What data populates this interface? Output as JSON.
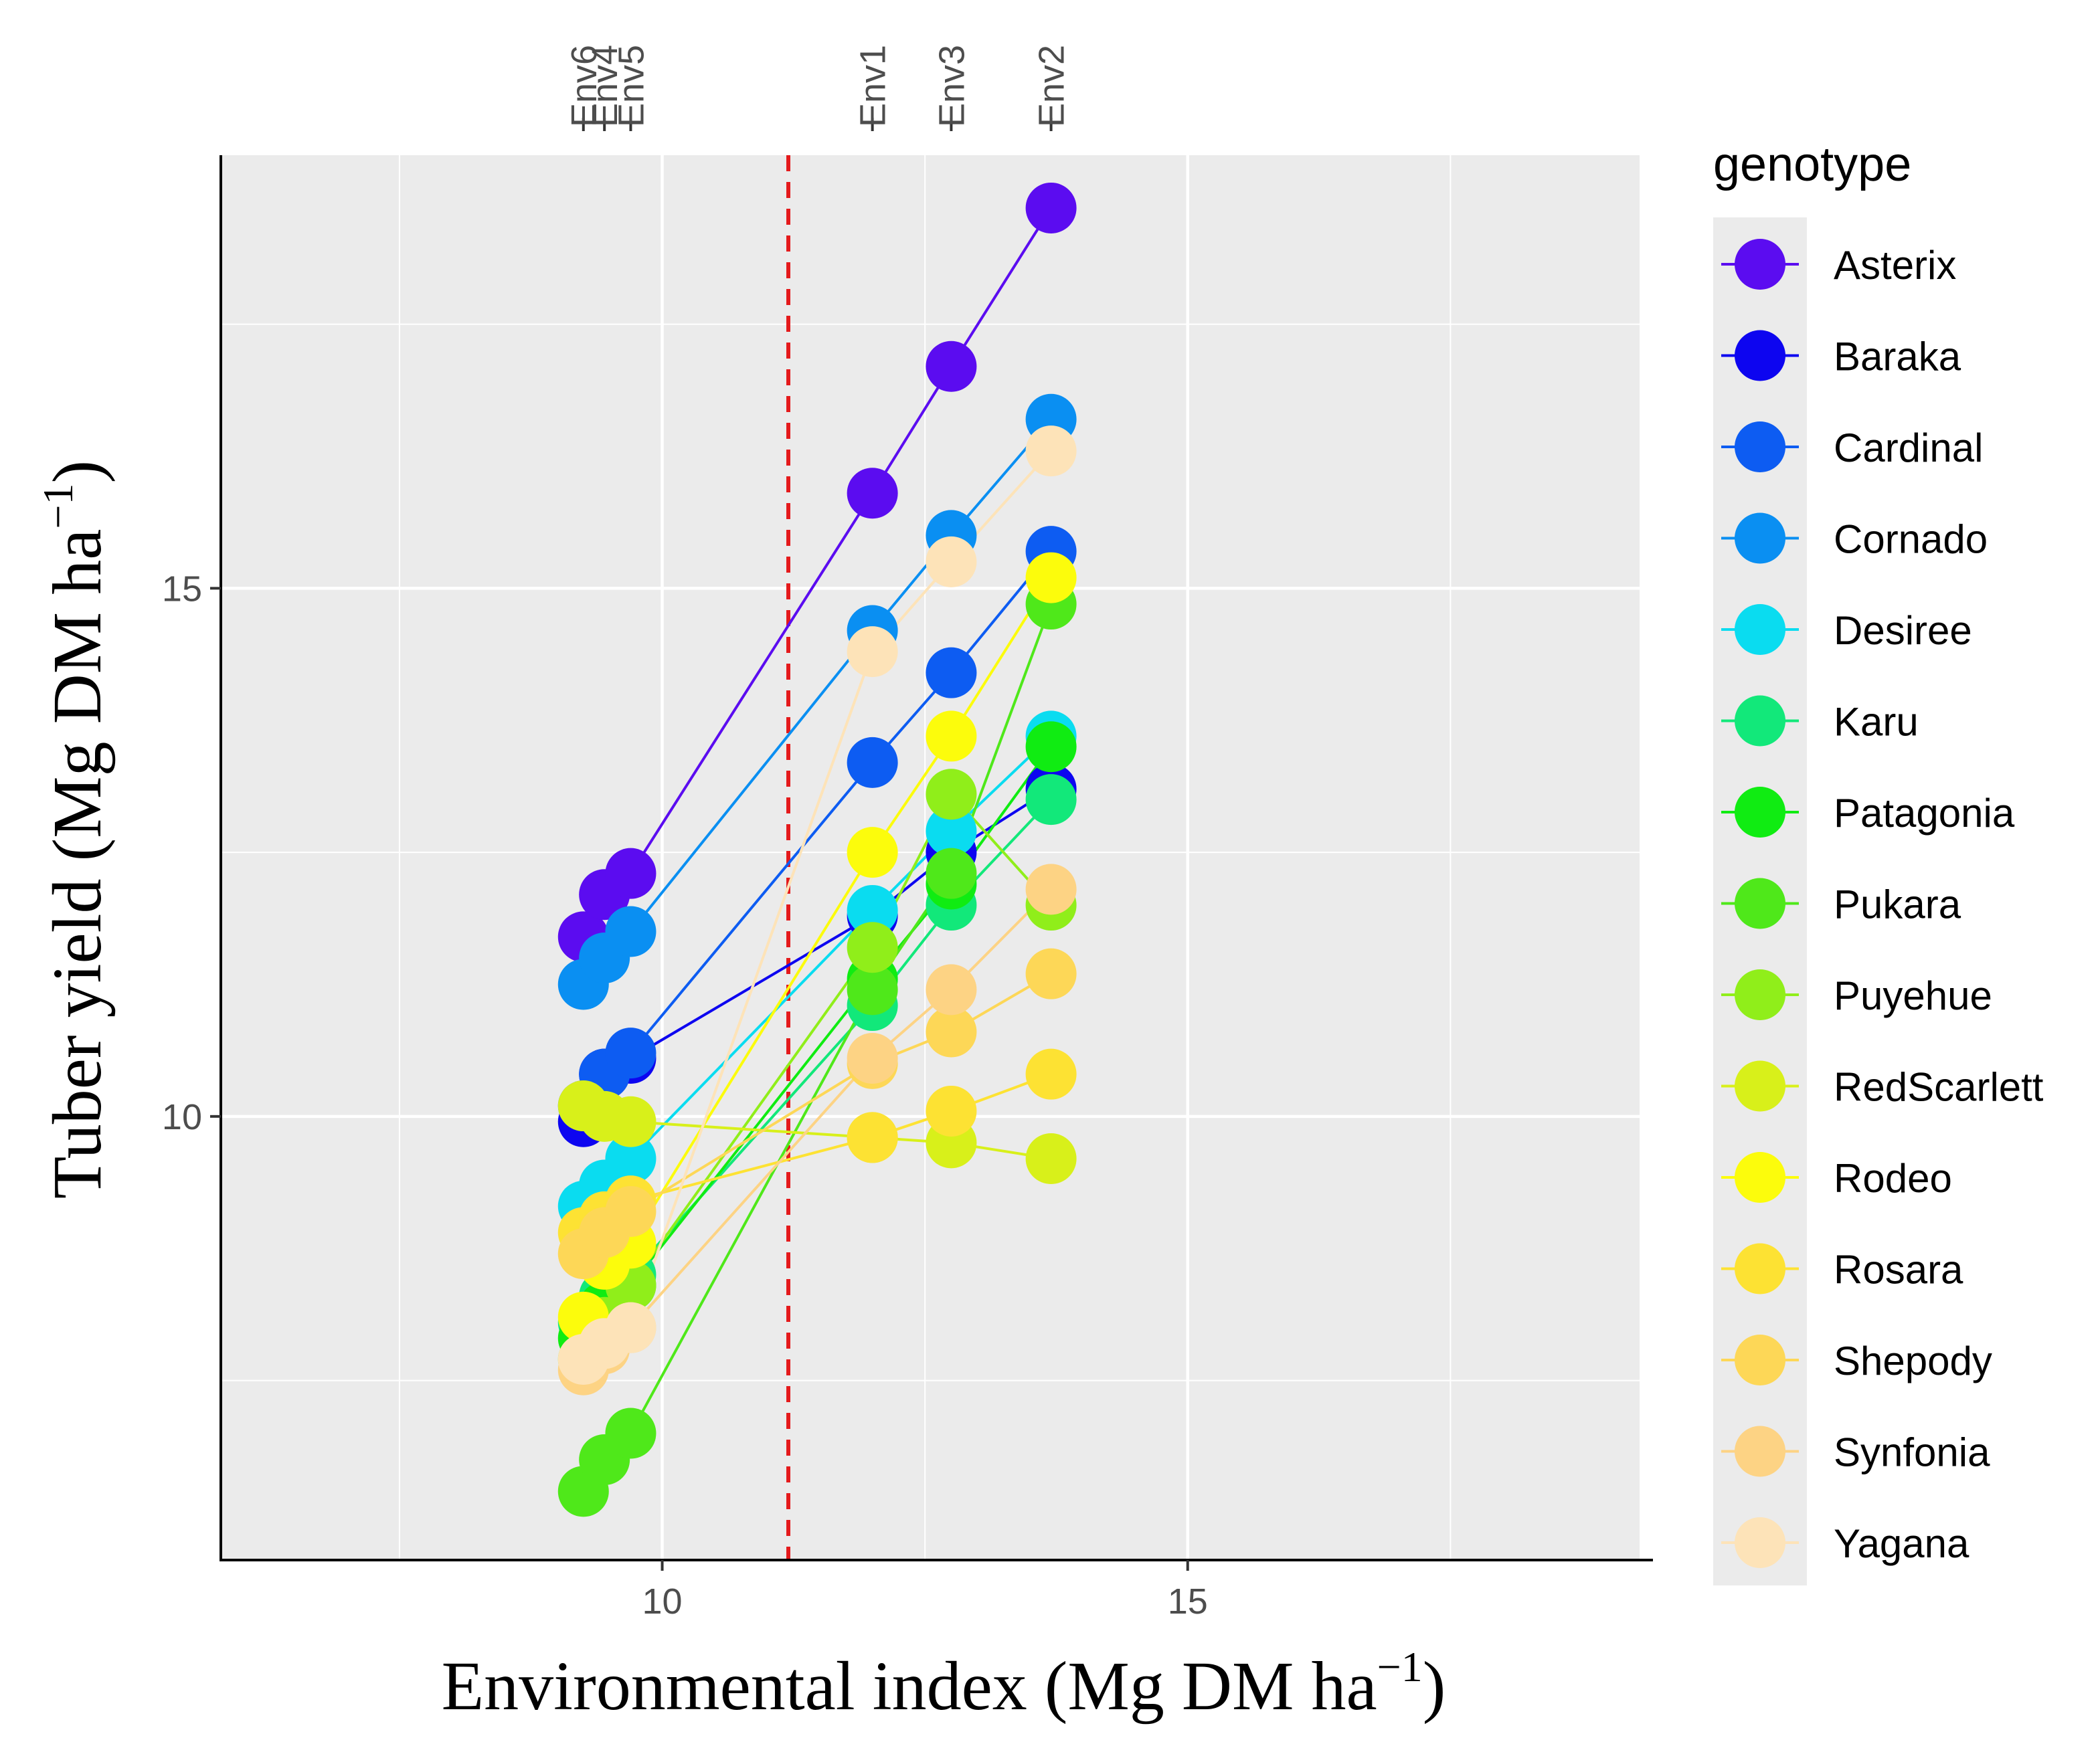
{
  "chart_data": {
    "type": "line",
    "title": "",
    "xlabel": "Environmental index (Mg DM ha",
    "xlabel_sup": "−1",
    "xlabel_end": ")",
    "ylabel": "Tuber yield (Mg DM ha",
    "ylabel_sup": "−1",
    "ylabel_end": ")",
    "xlim": [
      5.8,
      19.3
    ],
    "ylim": [
      5.8,
      19.1
    ],
    "xticks": [
      10,
      15
    ],
    "yticks": [
      10,
      15
    ],
    "x_minor_grid": [
      7.5,
      12.5,
      17.5
    ],
    "y_minor_grid": [
      7.5,
      12.5,
      17.5
    ],
    "grid": true,
    "reference_line": {
      "x": 11.2,
      "color": "#e41a1c",
      "style": "dashed"
    },
    "environments": [
      {
        "name": "Env6",
        "index": 9.25
      },
      {
        "name": "Env4",
        "index": 9.45
      },
      {
        "name": "Env5",
        "index": 9.7
      },
      {
        "name": "Env1",
        "index": 12.0
      },
      {
        "name": "Env3",
        "index": 12.75
      },
      {
        "name": "Env2",
        "index": 13.7
      }
    ],
    "x": [
      9.25,
      9.45,
      9.7,
      12.0,
      12.75,
      13.7
    ],
    "legend": {
      "title": "genotype",
      "position": "right"
    },
    "series": [
      {
        "name": "Asterix",
        "color": "#5b0cf0",
        "values": [
          11.7,
          12.1,
          12.3,
          15.9,
          17.1,
          18.6
        ]
      },
      {
        "name": "Baraka",
        "color": "#0d05f0",
        "values": [
          9.95,
          10.4,
          10.55,
          11.9,
          12.5,
          13.1
        ]
      },
      {
        "name": "Cardinal",
        "color": "#0d5cf2",
        "values": [
          10.1,
          10.4,
          10.6,
          13.35,
          14.2,
          15.35
        ]
      },
      {
        "name": "Cornado",
        "color": "#0a8ff2",
        "values": [
          11.25,
          11.5,
          11.75,
          14.6,
          15.5,
          16.6
        ]
      },
      {
        "name": "Desiree",
        "color": "#0adcf0",
        "values": [
          9.15,
          9.35,
          9.6,
          11.95,
          12.7,
          13.6
        ]
      },
      {
        "name": "Karu",
        "color": "#12e87a",
        "values": [
          8.05,
          8.3,
          8.5,
          11.05,
          12.0,
          13.0
        ]
      },
      {
        "name": "Patagonia",
        "color": "#10ec12",
        "values": [
          7.9,
          8.2,
          8.4,
          11.3,
          12.2,
          13.5
        ]
      },
      {
        "name": "Pukara",
        "color": "#4fe81a",
        "values": [
          6.45,
          6.75,
          7.0,
          11.2,
          12.3,
          14.85
        ]
      },
      {
        "name": "Puyehue",
        "color": "#90ee1a",
        "values": [
          7.7,
          8.05,
          8.4,
          11.6,
          13.05,
          12.0
        ]
      },
      {
        "name": "RedScarlett",
        "color": "#d8f01a",
        "values": [
          10.1,
          10.0,
          9.95,
          9.8,
          9.75,
          9.6
        ]
      },
      {
        "name": "Rodeo",
        "color": "#fcfc0c",
        "values": [
          8.1,
          8.6,
          8.8,
          12.5,
          13.6,
          15.1
        ]
      },
      {
        "name": "Rosara",
        "color": "#fde233",
        "values": [
          8.9,
          9.05,
          9.2,
          9.8,
          10.05,
          10.4
        ]
      },
      {
        "name": "Shepody",
        "color": "#fdd757",
        "values": [
          8.7,
          8.9,
          9.1,
          10.5,
          10.8,
          11.35
        ]
      },
      {
        "name": "Synfonia",
        "color": "#fdd384",
        "values": [
          7.6,
          7.8,
          8.0,
          10.55,
          11.2,
          12.15
        ]
      },
      {
        "name": "Yagana",
        "color": "#fde3b8",
        "values": [
          7.7,
          7.85,
          8.0,
          14.4,
          15.25,
          16.3
        ]
      }
    ]
  }
}
